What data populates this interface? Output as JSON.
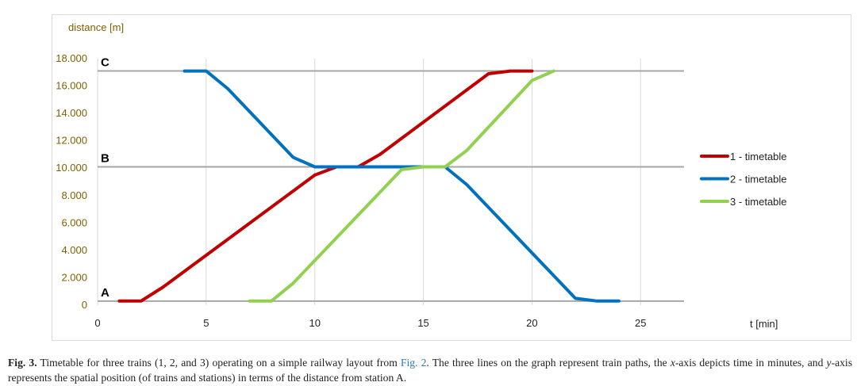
{
  "chart_data": {
    "type": "line",
    "ylabel": "distance [m]",
    "xlabel": "t [min]",
    "xlim": [
      0,
      27
    ],
    "ylim": [
      0,
      18000
    ],
    "x_ticks": [
      0,
      5,
      10,
      15,
      20,
      25
    ],
    "x_tick_labels": [
      "0",
      "5",
      "10",
      "15",
      "20",
      "25"
    ],
    "y_ticks": [
      0,
      2000,
      4000,
      6000,
      8000,
      10000,
      12000,
      14000,
      16000,
      18000
    ],
    "y_tick_labels": [
      "0",
      "2.000",
      "4.000",
      "6.000",
      "8.000",
      "10.000",
      "12.000",
      "14.000",
      "16.000",
      "18.000"
    ],
    "grid": {
      "vertical": true,
      "horizontal": false
    },
    "stations": [
      {
        "name": "A",
        "y": 300
      },
      {
        "name": "B",
        "y": 10100
      },
      {
        "name": "C",
        "y": 17100
      }
    ],
    "legend_position": "right",
    "series": [
      {
        "name": "1 - timetable",
        "color": "#c00000",
        "x": [
          1,
          2,
          3,
          10,
          11,
          12,
          13,
          18,
          19,
          20
        ],
        "y": [
          300,
          300,
          1300,
          9500,
          10100,
          10100,
          11000,
          16900,
          17100,
          17100
        ]
      },
      {
        "name": "2 - timetable",
        "color": "#0070c0",
        "x": [
          4,
          5,
          6,
          9,
          10,
          15,
          16,
          17,
          22,
          23,
          24
        ],
        "y": [
          17100,
          17100,
          15800,
          10800,
          10100,
          10100,
          10100,
          8800,
          500,
          300,
          300
        ]
      },
      {
        "name": "3 - timetable",
        "color": "#92d050",
        "x": [
          7,
          8,
          9,
          14,
          15,
          16,
          17,
          20,
          21
        ],
        "y": [
          300,
          300,
          1600,
          9900,
          10100,
          10100,
          11300,
          16400,
          17100
        ]
      }
    ]
  },
  "caption": {
    "fig_label": "Fig. 3.",
    "text_1": " Timetable for three trains (1, 2, and 3) operating on a simple railway layout from ",
    "fig_ref": "Fig. 2",
    "text_2": ". The three lines on the graph represent train paths, the ",
    "x_var": "x",
    "text_3": "-axis depicts time in minutes, and ",
    "y_var": "y",
    "text_4": "-axis represents the spatial position (of trains and stations) in terms of the distance from station A."
  }
}
